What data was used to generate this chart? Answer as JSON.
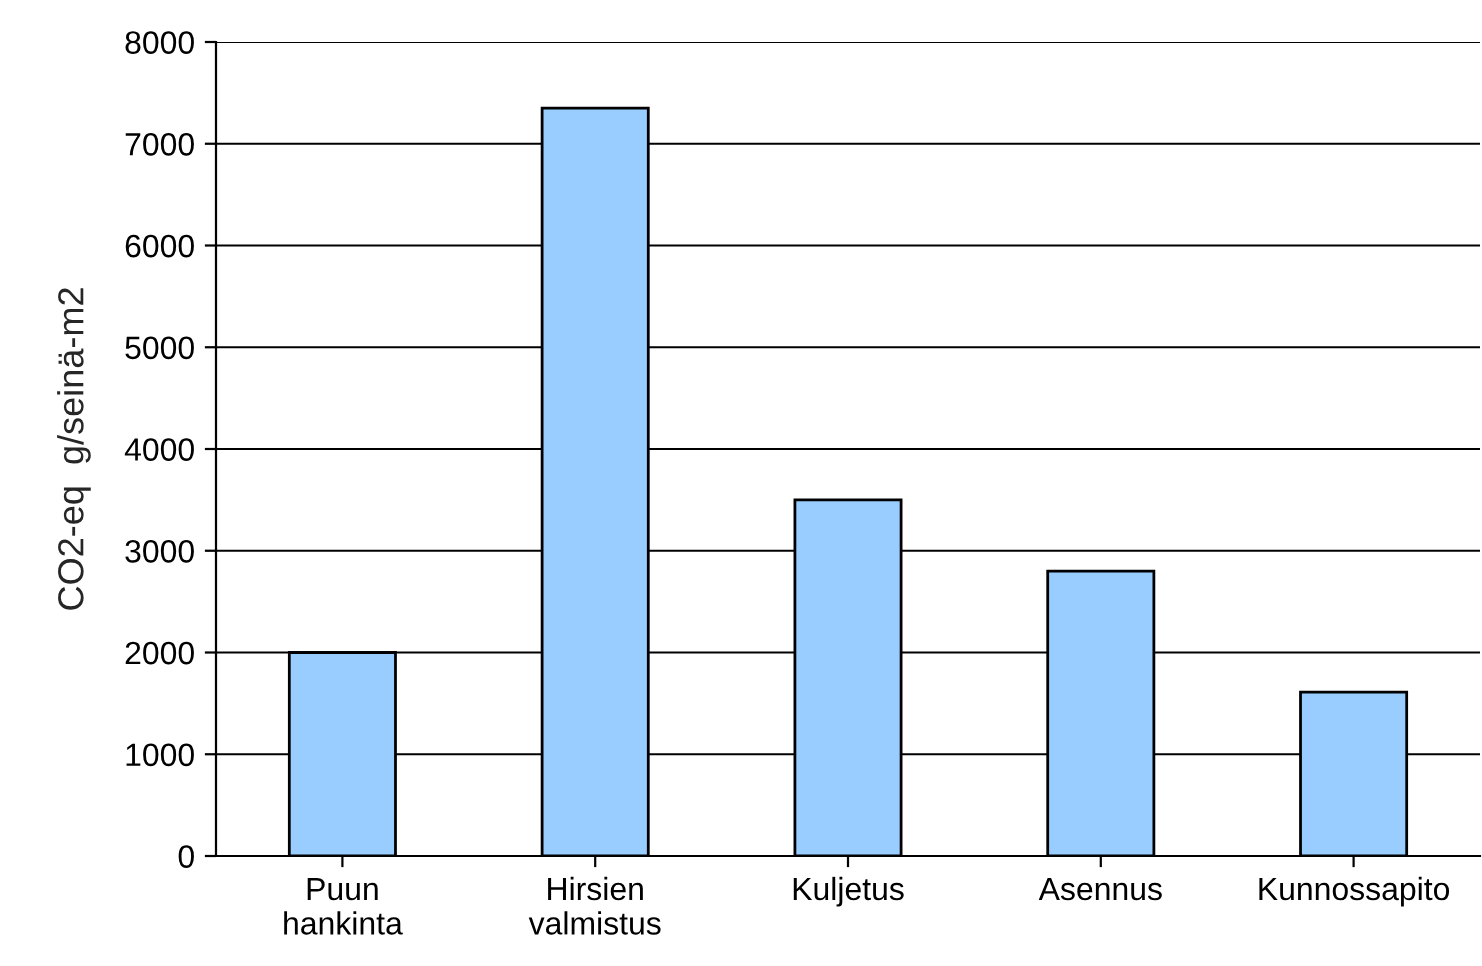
{
  "chart_data": {
    "type": "bar",
    "ylabel": "CO2-eq  g/seinä-m2",
    "categories": [
      "Puun\nhankinta",
      "Hirsien\nvalmistus",
      "Kuljetus",
      "Asennus",
      "Kunnossapito"
    ],
    "values": [
      2000,
      7350,
      3500,
      2800,
      1610
    ],
    "color": "#99ccff",
    "ylim": [
      0,
      8000
    ],
    "yticks": [
      0,
      1000,
      2000,
      3000,
      4000,
      5000,
      6000,
      7000,
      8000
    ],
    "grid": "y",
    "legend": false
  }
}
